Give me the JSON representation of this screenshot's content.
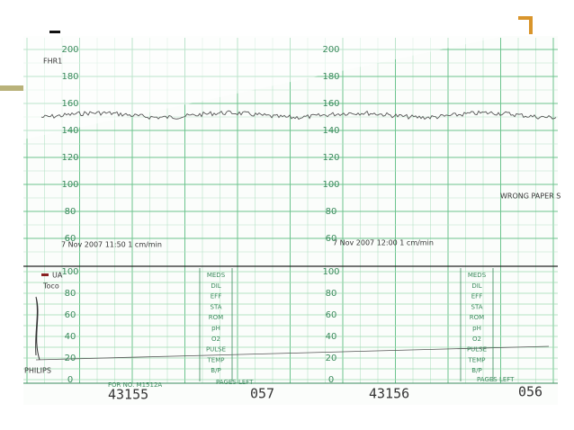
{
  "strip": {
    "fhr_scale": [
      200,
      180,
      160,
      140,
      120,
      100,
      80,
      60
    ],
    "ua_scale": [
      100,
      80,
      60,
      40,
      20,
      0
    ],
    "fhr_legend": "FHR1",
    "ua_legend": "UA",
    "toco_legend": "Toco",
    "timestamps": [
      "7 Nov 2007 11:50 1 cm/min",
      "7 Nov 2007 12:00 1 cm/min"
    ],
    "warning": "WRONG PAPER S",
    "brand": "PHILIPS",
    "notes_fields": [
      "MEDS",
      "DIL",
      "EFF",
      "STA",
      "ROM",
      "pH",
      "O2",
      "PULSE",
      "TEMP",
      "B/P"
    ],
    "form_number": "FOR NO. M1512A",
    "pages_left_label": "PAGES LEFT",
    "page_numbers": [
      "43155",
      "43156"
    ],
    "pages_left": [
      "057",
      "056"
    ]
  }
}
